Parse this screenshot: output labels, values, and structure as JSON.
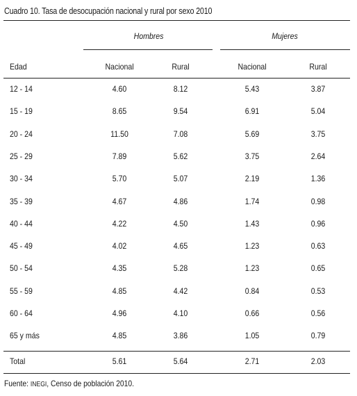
{
  "title": "Cuadro 10. Tasa de desocupación nacional y rural por sexo 2010",
  "groups": {
    "hombres": "Hombres",
    "mujeres": "Mujeres"
  },
  "columns": {
    "edad": "Edad",
    "h_nacional": "Nacional",
    "h_rural": "Rural",
    "m_nacional": "Nacional",
    "m_rural": "Rural"
  },
  "rows": [
    {
      "edad": "12 - 14",
      "h_nacional": "4.60",
      "h_rural": "8.12",
      "m_nacional": "5.43",
      "m_rural": "3.87"
    },
    {
      "edad": "15 - 19",
      "h_nacional": "8.65",
      "h_rural": "9.54",
      "m_nacional": "6.91",
      "m_rural": "5.04"
    },
    {
      "edad": "20 - 24",
      "h_nacional": "11.50",
      "h_rural": "7.08",
      "m_nacional": "5.69",
      "m_rural": "3.75"
    },
    {
      "edad": "25 - 29",
      "h_nacional": "7.89",
      "h_rural": "5.62",
      "m_nacional": "3.75",
      "m_rural": "2.64"
    },
    {
      "edad": "30 - 34",
      "h_nacional": "5.70",
      "h_rural": "5.07",
      "m_nacional": "2.19",
      "m_rural": "1.36"
    },
    {
      "edad": "35 - 39",
      "h_nacional": "4.67",
      "h_rural": "4.86",
      "m_nacional": "1.74",
      "m_rural": "0.98"
    },
    {
      "edad": "40 - 44",
      "h_nacional": "4.22",
      "h_rural": "4.50",
      "m_nacional": "1.43",
      "m_rural": "0.96"
    },
    {
      "edad": "45 - 49",
      "h_nacional": "4.02",
      "h_rural": "4.65",
      "m_nacional": "1.23",
      "m_rural": "0.63"
    },
    {
      "edad": "50 - 54",
      "h_nacional": "4.35",
      "h_rural": "5.28",
      "m_nacional": "1.23",
      "m_rural": "0.65"
    },
    {
      "edad": "55 - 59",
      "h_nacional": "4.85",
      "h_rural": "4.42",
      "m_nacional": "0.84",
      "m_rural": "0.53"
    },
    {
      "edad": "60 - 64",
      "h_nacional": "4.96",
      "h_rural": "4.10",
      "m_nacional": "0.66",
      "m_rural": "0.56"
    },
    {
      "edad": "65 y más",
      "h_nacional": "4.85",
      "h_rural": "3.86",
      "m_nacional": "1.05",
      "m_rural": "0.79"
    }
  ],
  "total": {
    "edad": "Total",
    "h_nacional": "5.61",
    "h_rural": "5.64",
    "m_nacional": "2.71",
    "m_rural": "2.03"
  },
  "source": {
    "prefix": "Fuente: ",
    "org": "INEGI",
    "rest": ", Censo de población 2010."
  }
}
